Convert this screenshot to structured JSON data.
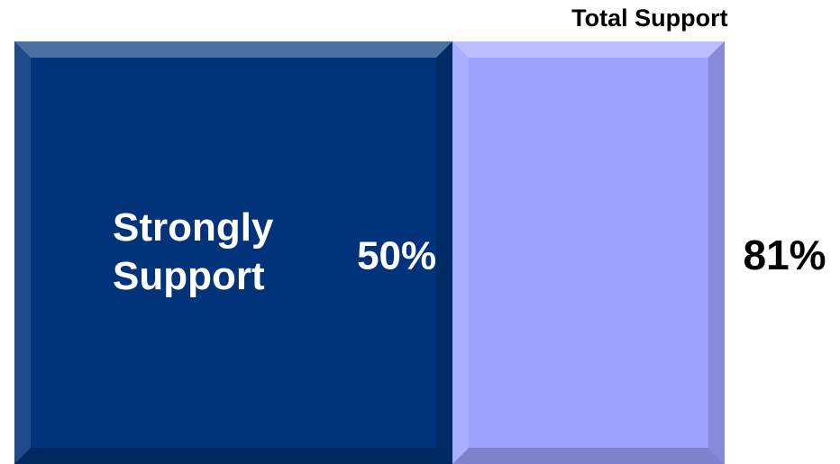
{
  "chart_data": {
    "type": "stacked_bar",
    "series": [
      {
        "name": "Strongly Support",
        "color": "#00337a",
        "values": [
          50
        ],
        "value_labels": [
          "50%"
        ]
      },
      {
        "color": "#9fa3ff",
        "values": [
          31
        ]
      }
    ],
    "total": {
      "label": "Total Support",
      "value": 81,
      "value_label": "81%"
    },
    "xlim": [
      0,
      94
    ]
  }
}
